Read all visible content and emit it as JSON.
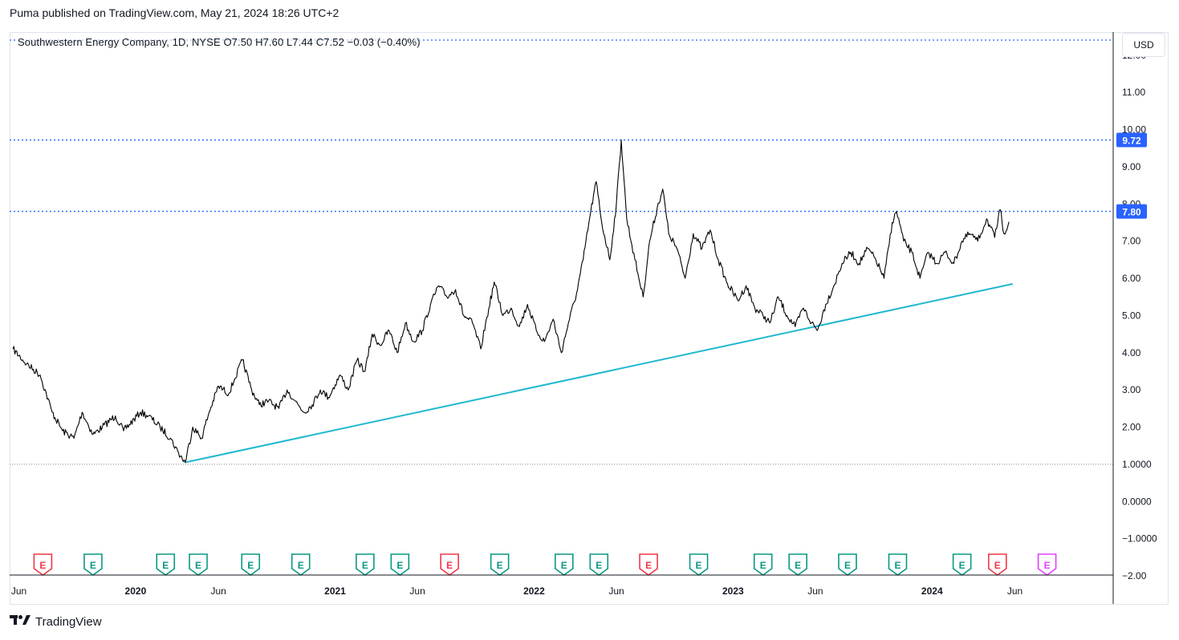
{
  "header": {
    "publisher_text": "Puma published on TradingView.com, May 21, 2024 18:26 UTC+2"
  },
  "legend": {
    "text": "Southwestern Energy Company, 1D, NYSE  O7.50  H7.60  L7.44  C7.52  −0.03 (−0.40%)"
  },
  "currency": "USD",
  "footer": {
    "brand": "TradingView",
    "logo_icon": "tradingview-logo-icon"
  },
  "colors": {
    "price_line": "#000000",
    "trendline": "#1fb8cf",
    "level_line": "#2962ff",
    "label_bg": "#2962ff",
    "earnings_green": "#089981",
    "earnings_red": "#f23645",
    "earnings_future": "#e040fb"
  },
  "chart_data": {
    "type": "line",
    "title": "Southwestern Energy Company, 1D, NYSE",
    "ylim": [
      -2,
      12.6
    ],
    "y_ticks": [
      "12.00",
      "11.00",
      "10.00",
      "9.00",
      "8.00",
      "7.00",
      "6.00",
      "5.00",
      "4.00",
      "3.00",
      "2.00",
      "1.0000",
      "0.0000",
      "−1.0000",
      "−2.00"
    ],
    "y_tick_values": [
      12,
      11,
      10,
      9,
      8,
      7,
      6,
      5,
      4,
      3,
      2,
      1,
      0,
      -1,
      -2
    ],
    "x_ticks": [
      {
        "label": "Jun",
        "date": "2019-06-01",
        "bold": false
      },
      {
        "label": "2020",
        "date": "2020-01-01",
        "bold": true
      },
      {
        "label": "Jun",
        "date": "2020-06-01",
        "bold": false
      },
      {
        "label": "2021",
        "date": "2021-01-01",
        "bold": true
      },
      {
        "label": "Jun",
        "date": "2021-06-01",
        "bold": false
      },
      {
        "label": "2022",
        "date": "2022-01-01",
        "bold": true
      },
      {
        "label": "Jun",
        "date": "2022-06-01",
        "bold": false
      },
      {
        "label": "2023",
        "date": "2023-01-01",
        "bold": true
      },
      {
        "label": "Jun",
        "date": "2023-06-01",
        "bold": false
      },
      {
        "label": "2024",
        "date": "2024-01-01",
        "bold": true
      },
      {
        "label": "Jun",
        "date": "2024-06-01",
        "bold": false
      }
    ],
    "series": [
      {
        "points": [
          [
            "2019-05-21",
            4.1
          ],
          [
            "2019-06-15",
            3.7
          ],
          [
            "2019-07-10",
            3.4
          ],
          [
            "2019-08-01",
            2.4
          ],
          [
            "2019-08-20",
            1.9
          ],
          [
            "2019-09-10",
            1.7
          ],
          [
            "2019-09-25",
            2.4
          ],
          [
            "2019-10-15",
            1.8
          ],
          [
            "2019-11-01",
            2.0
          ],
          [
            "2019-11-25",
            2.3
          ],
          [
            "2019-12-10",
            1.9
          ],
          [
            "2020-01-10",
            2.4
          ],
          [
            "2020-01-25",
            2.3
          ],
          [
            "2020-02-15",
            2.0
          ],
          [
            "2020-03-05",
            1.7
          ],
          [
            "2020-03-20",
            1.3
          ],
          [
            "2020-04-01",
            1.05
          ],
          [
            "2020-04-15",
            2.0
          ],
          [
            "2020-05-01",
            1.7
          ],
          [
            "2020-05-15",
            2.4
          ],
          [
            "2020-06-01",
            3.1
          ],
          [
            "2020-06-20",
            2.9
          ],
          [
            "2020-07-01",
            3.3
          ],
          [
            "2020-07-15",
            3.8
          ],
          [
            "2020-08-01",
            3.0
          ],
          [
            "2020-08-15",
            2.6
          ],
          [
            "2020-09-01",
            2.7
          ],
          [
            "2020-09-20",
            2.5
          ],
          [
            "2020-10-05",
            3.0
          ],
          [
            "2020-10-20",
            2.7
          ],
          [
            "2020-11-05",
            2.4
          ],
          [
            "2020-11-20",
            2.6
          ],
          [
            "2020-12-05",
            3.0
          ],
          [
            "2020-12-20",
            2.8
          ],
          [
            "2021-01-10",
            3.4
          ],
          [
            "2021-01-25",
            3.0
          ],
          [
            "2021-02-10",
            3.8
          ],
          [
            "2021-02-25",
            3.5
          ],
          [
            "2021-03-10",
            4.5
          ],
          [
            "2021-03-25",
            4.2
          ],
          [
            "2021-04-10",
            4.6
          ],
          [
            "2021-04-25",
            4.0
          ],
          [
            "2021-05-10",
            4.8
          ],
          [
            "2021-05-25",
            4.3
          ],
          [
            "2021-06-10",
            4.6
          ],
          [
            "2021-06-25",
            5.3
          ],
          [
            "2021-07-10",
            5.8
          ],
          [
            "2021-07-25",
            5.5
          ],
          [
            "2021-08-10",
            5.7
          ],
          [
            "2021-08-25",
            5.0
          ],
          [
            "2021-09-10",
            4.8
          ],
          [
            "2021-09-25",
            4.1
          ],
          [
            "2021-10-10",
            5.2
          ],
          [
            "2021-10-20",
            5.9
          ],
          [
            "2021-11-05",
            5.0
          ],
          [
            "2021-11-20",
            5.2
          ],
          [
            "2021-12-05",
            4.7
          ],
          [
            "2021-12-20",
            5.3
          ],
          [
            "2022-01-05",
            4.6
          ],
          [
            "2022-01-20",
            4.3
          ],
          [
            "2022-02-05",
            4.9
          ],
          [
            "2022-02-20",
            4.0
          ],
          [
            "2022-03-05",
            4.8
          ],
          [
            "2022-03-20",
            5.6
          ],
          [
            "2022-04-01",
            6.5
          ],
          [
            "2022-04-15",
            7.8
          ],
          [
            "2022-04-25",
            8.6
          ],
          [
            "2022-05-05",
            7.5
          ],
          [
            "2022-05-20",
            6.5
          ],
          [
            "2022-06-01",
            8.0
          ],
          [
            "2022-06-10",
            9.72
          ],
          [
            "2022-06-20",
            7.6
          ],
          [
            "2022-07-05",
            6.5
          ],
          [
            "2022-07-20",
            5.5
          ],
          [
            "2022-08-01",
            7.0
          ],
          [
            "2022-08-15",
            7.9
          ],
          [
            "2022-08-25",
            8.4
          ],
          [
            "2022-09-05",
            7.2
          ],
          [
            "2022-09-20",
            6.8
          ],
          [
            "2022-10-05",
            6.0
          ],
          [
            "2022-10-20",
            7.2
          ],
          [
            "2022-11-05",
            6.8
          ],
          [
            "2022-11-20",
            7.3
          ],
          [
            "2022-12-05",
            6.5
          ],
          [
            "2022-12-20",
            5.9
          ],
          [
            "2023-01-10",
            5.4
          ],
          [
            "2023-01-25",
            5.8
          ],
          [
            "2023-02-10",
            5.2
          ],
          [
            "2023-02-25",
            5.0
          ],
          [
            "2023-03-10",
            4.8
          ],
          [
            "2023-03-25",
            5.5
          ],
          [
            "2023-04-10",
            5.0
          ],
          [
            "2023-04-25",
            4.7
          ],
          [
            "2023-05-10",
            5.2
          ],
          [
            "2023-05-25",
            4.8
          ],
          [
            "2023-06-05",
            4.6
          ],
          [
            "2023-06-20",
            5.3
          ],
          [
            "2023-07-05",
            5.8
          ],
          [
            "2023-07-20",
            6.4
          ],
          [
            "2023-08-05",
            6.7
          ],
          [
            "2023-08-20",
            6.4
          ],
          [
            "2023-09-05",
            6.8
          ],
          [
            "2023-09-20",
            6.5
          ],
          [
            "2023-10-05",
            6.0
          ],
          [
            "2023-10-20",
            7.5
          ],
          [
            "2023-10-28",
            7.8
          ],
          [
            "2023-11-10",
            7.0
          ],
          [
            "2023-11-25",
            6.7
          ],
          [
            "2023-12-10",
            6.0
          ],
          [
            "2023-12-25",
            6.7
          ],
          [
            "2024-01-10",
            6.4
          ],
          [
            "2024-01-25",
            6.7
          ],
          [
            "2024-02-10",
            6.4
          ],
          [
            "2024-02-25",
            7.0
          ],
          [
            "2024-03-10",
            7.2
          ],
          [
            "2024-03-25",
            7.0
          ],
          [
            "2024-04-10",
            7.6
          ],
          [
            "2024-04-25",
            7.1
          ],
          [
            "2024-05-05",
            7.85
          ],
          [
            "2024-05-12",
            7.2
          ],
          [
            "2024-05-21",
            7.52
          ]
        ]
      }
    ],
    "trendline": {
      "from": [
        "2020-04-01",
        1.05
      ],
      "to": [
        "2024-05-28",
        5.85
      ]
    },
    "horizontal_levels": [
      {
        "value": 12.8,
        "style": "dotted",
        "color": "#2962ff",
        "label": ""
      },
      {
        "value": 9.72,
        "style": "dotted",
        "color": "#2962ff",
        "label": "9.72"
      },
      {
        "value": 7.8,
        "style": "dotted",
        "color": "#2962ff",
        "label": "7.80"
      },
      {
        "value": 1.0,
        "style": "dotted",
        "color": "#9598a1",
        "label": ""
      }
    ],
    "earnings_markers": [
      {
        "date": "2019-07-15",
        "kind": "miss",
        "label": "E"
      },
      {
        "date": "2019-10-15",
        "kind": "beat",
        "label": "E"
      },
      {
        "date": "2020-02-25",
        "kind": "beat",
        "label": "E"
      },
      {
        "date": "2020-04-25",
        "kind": "beat",
        "label": "E"
      },
      {
        "date": "2020-07-30",
        "kind": "beat",
        "label": "E"
      },
      {
        "date": "2020-10-30",
        "kind": "beat",
        "label": "E"
      },
      {
        "date": "2021-02-25",
        "kind": "beat",
        "label": "E"
      },
      {
        "date": "2021-04-30",
        "kind": "beat",
        "label": "E"
      },
      {
        "date": "2021-07-30",
        "kind": "miss",
        "label": "E"
      },
      {
        "date": "2021-10-30",
        "kind": "beat",
        "label": "E"
      },
      {
        "date": "2022-02-25",
        "kind": "beat",
        "label": "E"
      },
      {
        "date": "2022-04-30",
        "kind": "beat",
        "label": "E"
      },
      {
        "date": "2022-07-30",
        "kind": "miss",
        "label": "E"
      },
      {
        "date": "2022-10-30",
        "kind": "beat",
        "label": "E"
      },
      {
        "date": "2023-02-25",
        "kind": "beat",
        "label": "E"
      },
      {
        "date": "2023-04-30",
        "kind": "beat",
        "label": "E"
      },
      {
        "date": "2023-07-30",
        "kind": "beat",
        "label": "E"
      },
      {
        "date": "2023-10-30",
        "kind": "beat",
        "label": "E"
      },
      {
        "date": "2024-02-25",
        "kind": "beat",
        "label": "E"
      },
      {
        "date": "2024-04-30",
        "kind": "miss",
        "label": "E"
      },
      {
        "date": "2024-07-30",
        "kind": "future",
        "label": "E"
      }
    ]
  }
}
